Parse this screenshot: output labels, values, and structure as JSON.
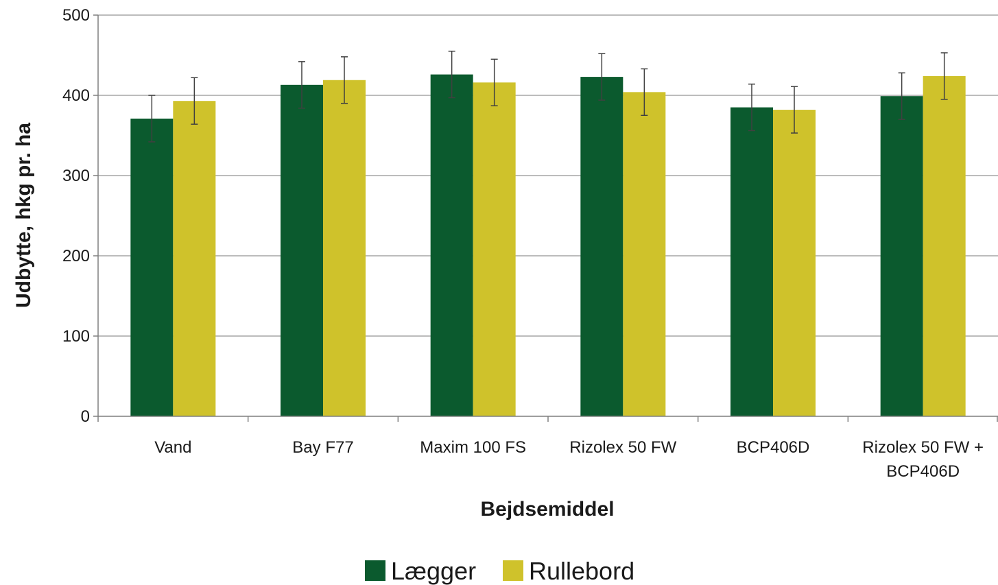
{
  "chart_data": {
    "type": "bar",
    "title": "",
    "xlabel": "Bejdsemiddel",
    "ylabel": "Udbytte, hkg pr. ha",
    "ylim": [
      0,
      500
    ],
    "yticks": [
      0,
      100,
      200,
      300,
      400,
      500
    ],
    "grid": true,
    "legend_position": "bottom-center",
    "categories": [
      [
        "Vand"
      ],
      [
        "Bay F77"
      ],
      [
        "Maxim 100 FS"
      ],
      [
        "Rizolex 50 FW"
      ],
      [
        "BCP406D"
      ],
      [
        "Rizolex 50 FW +",
        "BCP406D"
      ]
    ],
    "series": [
      {
        "name": "Lægger",
        "color": "#0b5a2e",
        "values": [
          371,
          413,
          426,
          423,
          385,
          399
        ],
        "error": [
          29,
          29,
          29,
          29,
          29,
          29
        ]
      },
      {
        "name": "Rullebord",
        "color": "#cfc22b",
        "values": [
          393,
          419,
          416,
          404,
          382,
          424
        ],
        "error": [
          29,
          29,
          29,
          29,
          29,
          29
        ]
      }
    ]
  }
}
